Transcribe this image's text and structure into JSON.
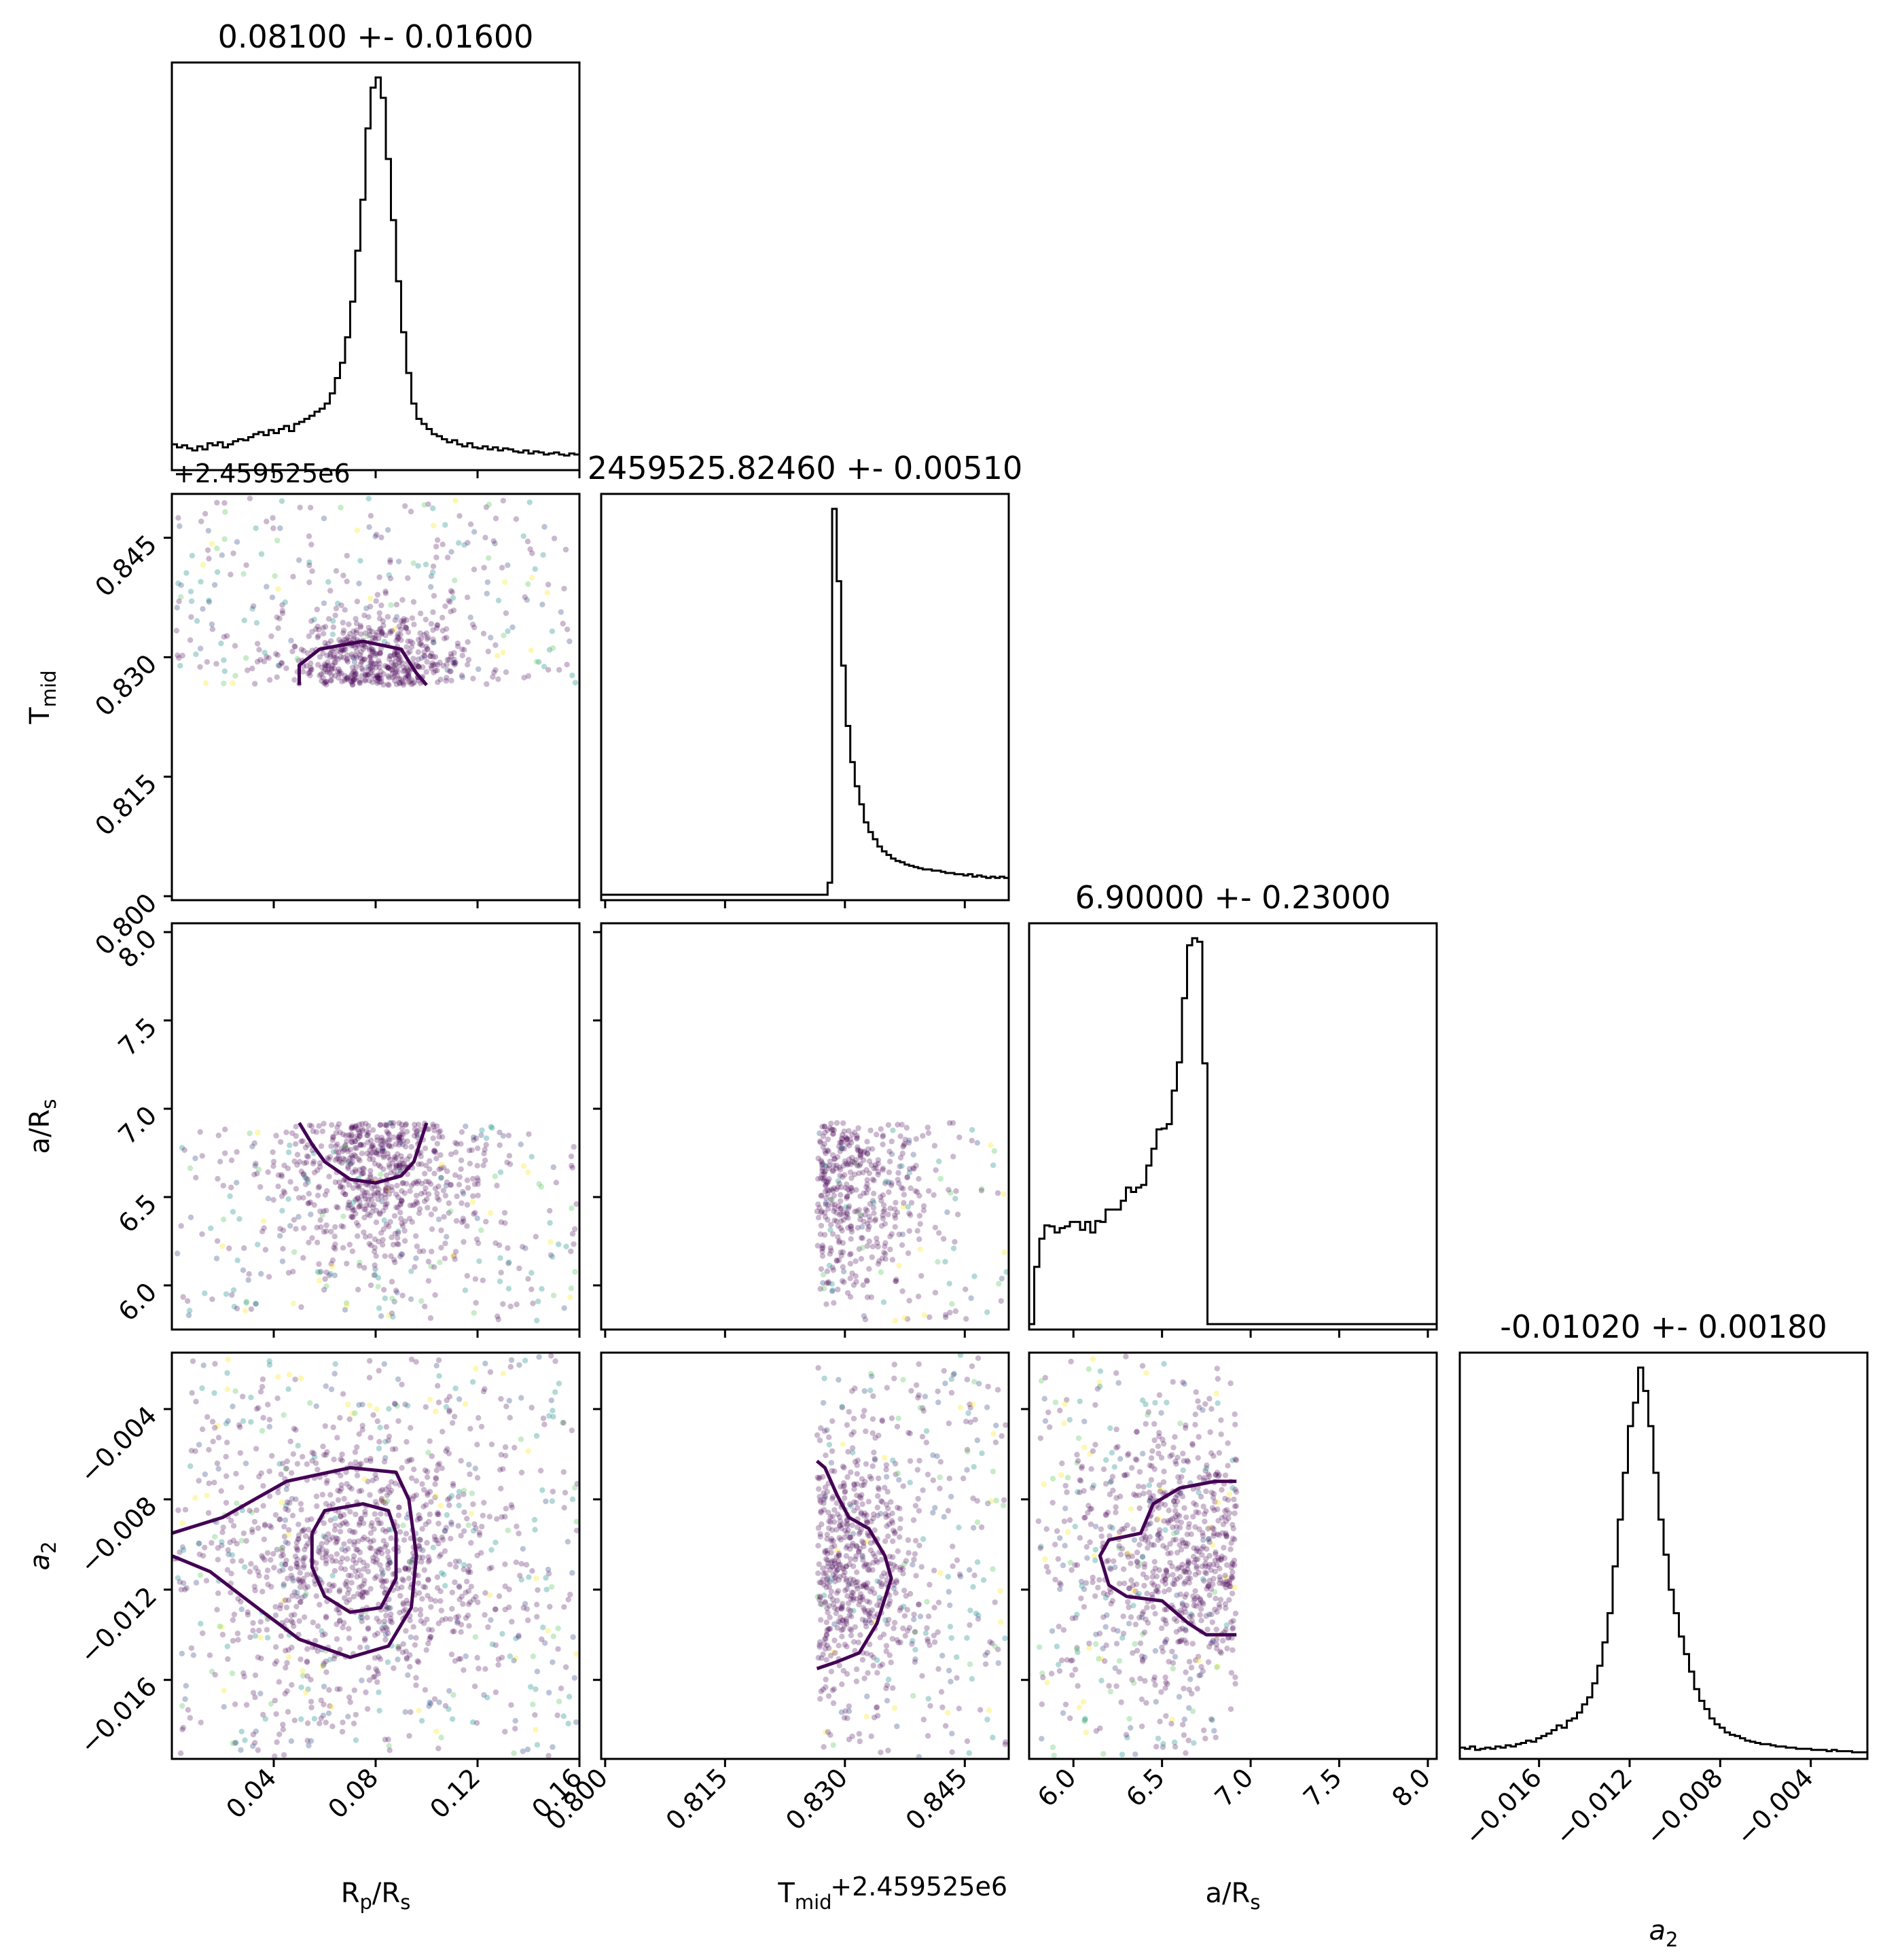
{
  "chart_data": {
    "type": "scatter",
    "chart_kind": "corner-plot",
    "colormap": "viridis",
    "parameters": [
      {
        "key": "rp",
        "label_main": "R",
        "label_sub": "p",
        "label_tail": "/R",
        "label_sub2": "s",
        "range": [
          0.0,
          0.16
        ],
        "ticks": [
          0.04,
          0.08,
          0.12,
          0.16
        ],
        "tick_labels": [
          "0.04",
          "0.08",
          "0.12",
          "0.16"
        ],
        "title": "0.08100 +- 0.01600",
        "offset_label": ""
      },
      {
        "key": "tmid",
        "label_main": "T",
        "label_sub": "mid",
        "label_tail": "",
        "label_sub2": "",
        "range": [
          0.7995,
          0.8505
        ],
        "ticks": [
          0.8,
          0.815,
          0.83,
          0.845
        ],
        "tick_labels": [
          "0.800",
          "0.815",
          "0.830",
          "0.845"
        ],
        "title": "2459525.82460 +- 0.00510",
        "offset_label": "+2.459525e6"
      },
      {
        "key": "ars",
        "label_main": "a/R",
        "label_sub": "s",
        "label_tail": "",
        "label_sub2": "",
        "range": [
          5.75,
          8.05
        ],
        "ticks": [
          6.0,
          6.5,
          7.0,
          7.5,
          8.0
        ],
        "tick_labels": [
          "6.0",
          "6.5",
          "7.0",
          "7.5",
          "8.0"
        ],
        "title": "6.90000 +- 0.23000",
        "offset_label": ""
      },
      {
        "key": "a2",
        "label_main": "a",
        "label_sub": "2",
        "label_tail": "",
        "label_sub2": "",
        "italic": true,
        "range": [
          -0.0195,
          -0.0015
        ],
        "ticks": [
          -0.016,
          -0.012,
          -0.008,
          -0.004
        ],
        "tick_labels": [
          "−0.016",
          "−0.012",
          "−0.008",
          "−0.004"
        ],
        "title": "-0.01020 +- 0.00180",
        "offset_label": ""
      }
    ],
    "histograms": [
      {
        "param": "rp",
        "bins": [
          0.0,
          0.16
        ],
        "counts": [
          20,
          17,
          19,
          16,
          14,
          18,
          15,
          21,
          19,
          22,
          17,
          20,
          23,
          25,
          24,
          27,
          30,
          32,
          29,
          34,
          31,
          35,
          38,
          33,
          40,
          42,
          45,
          48,
          52,
          55,
          60,
          70,
          85,
          100,
          125,
          160,
          210,
          260,
          330,
          370,
          380,
          360,
          300,
          240,
          180,
          130,
          90,
          60,
          45,
          40,
          35,
          30,
          28,
          25,
          22,
          24,
          20,
          18,
          21,
          17,
          16,
          18,
          15,
          17,
          14,
          16,
          15,
          13,
          12,
          14,
          11,
          13,
          12,
          10,
          11,
          12,
          10,
          9,
          11,
          10
        ]
      },
      {
        "param": "tmid",
        "bins": [
          0.7995,
          0.8505
        ],
        "counts": [
          0,
          0,
          0,
          0,
          0,
          0,
          0,
          0,
          0,
          0,
          0,
          0,
          0,
          0,
          0,
          0,
          0,
          0,
          0,
          0,
          0,
          0,
          0,
          0,
          0,
          0,
          0,
          0,
          0,
          0,
          0,
          0,
          0,
          0,
          0,
          0,
          0,
          0,
          0,
          0,
          0,
          0,
          0,
          0,
          0,
          0,
          0,
          0,
          0,
          0,
          10,
          320,
          260,
          190,
          140,
          110,
          90,
          75,
          60,
          52,
          46,
          40,
          36,
          33,
          30,
          28,
          27,
          25,
          24,
          23,
          22,
          21,
          21,
          20,
          20,
          19,
          18,
          18,
          17,
          17,
          16,
          17,
          15,
          16,
          15,
          14,
          15,
          14,
          15,
          14
        ]
      },
      {
        "param": "ars",
        "bins": [
          5.75,
          8.05
        ],
        "counts": [
          0,
          65,
          97,
          112,
          111,
          104,
          109,
          111,
          116,
          116,
          107,
          116,
          104,
          117,
          116,
          130,
          130,
          130,
          140,
          155,
          150,
          155,
          158,
          180,
          199,
          221,
          222,
          227,
          265,
          297,
          370,
          430,
          438,
          434,
          296,
          0,
          0,
          0,
          0,
          0,
          0,
          0,
          0,
          0,
          0,
          0,
          0,
          0,
          0,
          0,
          0,
          0,
          0,
          0,
          0,
          0,
          0,
          0,
          0,
          0,
          0,
          0,
          0,
          0,
          0,
          0,
          0,
          0,
          0,
          0,
          0,
          0,
          0,
          0,
          0,
          0,
          0,
          0,
          0,
          0
        ]
      },
      {
        "param": "a2",
        "bins": [
          -0.0195,
          -0.0015
        ],
        "counts": [
          5,
          4,
          6,
          3,
          4,
          5,
          4,
          6,
          5,
          7,
          6,
          8,
          9,
          11,
          10,
          13,
          15,
          17,
          20,
          24,
          22,
          28,
          30,
          35,
          42,
          48,
          60,
          75,
          95,
          120,
          160,
          200,
          240,
          280,
          300,
          330,
          310,
          280,
          240,
          200,
          170,
          140,
          120,
          100,
          85,
          70,
          55,
          45,
          38,
          30,
          25,
          22,
          18,
          16,
          15,
          13,
          11,
          10,
          9,
          8,
          8,
          7,
          6,
          6,
          5,
          5,
          4,
          4,
          4,
          3,
          3,
          3,
          2,
          3,
          2,
          2,
          2,
          1,
          1,
          1
        ]
      }
    ],
    "pairs": [
      {
        "x": "rp",
        "y": "tmid",
        "point_cloud": {
          "center": [
            0.08,
            0.8282
          ],
          "spread": [
            0.02,
            0.004
          ],
          "clip_y": [
            0.8265,
            0.85
          ]
        },
        "contours": [
          [
            [
              0.05,
              0.8265
            ],
            [
              0.05,
              0.829
            ],
            [
              0.058,
              0.831
            ],
            [
              0.075,
              0.832
            ],
            [
              0.09,
              0.831
            ],
            [
              0.096,
              0.828
            ],
            [
              0.1,
              0.8265
            ]
          ]
        ]
      },
      {
        "x": "rp",
        "y": "ars",
        "point_cloud": {
          "center": [
            0.08,
            6.75
          ],
          "spread": [
            0.02,
            0.3
          ],
          "clip_y": [
            5.8,
            6.92
          ]
        },
        "contours": [
          [
            [
              0.05,
              6.92
            ],
            [
              0.055,
              6.8
            ],
            [
              0.06,
              6.7
            ],
            [
              0.07,
              6.6
            ],
            [
              0.08,
              6.58
            ],
            [
              0.09,
              6.62
            ],
            [
              0.095,
              6.7
            ],
            [
              0.1,
              6.92
            ]
          ]
        ]
      },
      {
        "x": "rp",
        "y": "a2",
        "point_cloud": {
          "center": [
            0.075,
            -0.0105
          ],
          "spread": [
            0.03,
            0.003
          ]
        },
        "contours": [
          [
            [
              0.0,
              -0.0095
            ],
            [
              0.02,
              -0.0088
            ],
            [
              0.045,
              -0.0072
            ],
            [
              0.07,
              -0.0066
            ],
            [
              0.088,
              -0.0068
            ],
            [
              0.093,
              -0.008
            ],
            [
              0.096,
              -0.0105
            ],
            [
              0.094,
              -0.0128
            ],
            [
              0.085,
              -0.0145
            ],
            [
              0.07,
              -0.015
            ],
            [
              0.05,
              -0.0142
            ],
            [
              0.03,
              -0.0125
            ],
            [
              0.015,
              -0.0112
            ],
            [
              0.0,
              -0.0105
            ]
          ],
          [
            [
              0.055,
              -0.0095
            ],
            [
              0.06,
              -0.0085
            ],
            [
              0.075,
              -0.0082
            ],
            [
              0.085,
              -0.0085
            ],
            [
              0.088,
              -0.0095
            ],
            [
              0.088,
              -0.0115
            ],
            [
              0.082,
              -0.0128
            ],
            [
              0.07,
              -0.013
            ],
            [
              0.06,
              -0.0123
            ],
            [
              0.055,
              -0.011
            ],
            [
              0.055,
              -0.0095
            ]
          ]
        ]
      },
      {
        "x": "tmid",
        "y": "ars",
        "point_cloud": {
          "center": [
            0.8285,
            6.7
          ],
          "spread": [
            0.006,
            0.35
          ],
          "clip_x": [
            0.8265,
            0.8505
          ],
          "clip_y": [
            5.8,
            6.92
          ]
        },
        "contours": []
      },
      {
        "x": "tmid",
        "y": "a2",
        "point_cloud": {
          "center": [
            0.828,
            -0.0105
          ],
          "spread": [
            0.006,
            0.003
          ],
          "clip_x": [
            0.8265,
            0.8505
          ]
        },
        "contours": [
          [
            [
              0.8265,
              -0.0063
            ],
            [
              0.8275,
              -0.0066
            ],
            [
              0.829,
              -0.0078
            ],
            [
              0.8305,
              -0.0088
            ],
            [
              0.833,
              -0.0093
            ],
            [
              0.835,
              -0.0105
            ],
            [
              0.8358,
              -0.0115
            ],
            [
              0.834,
              -0.0135
            ],
            [
              0.8318,
              -0.0148
            ],
            [
              0.829,
              -0.0152
            ],
            [
              0.8265,
              -0.0155
            ]
          ]
        ]
      },
      {
        "x": "ars",
        "y": "a2",
        "point_cloud": {
          "center": [
            6.7,
            -0.0105
          ],
          "spread": [
            0.35,
            0.003
          ],
          "clip_x": [
            5.8,
            6.92
          ]
        },
        "contours": [
          [
            [
              6.92,
              -0.0072
            ],
            [
              6.8,
              -0.0072
            ],
            [
              6.6,
              -0.0075
            ],
            [
              6.45,
              -0.0082
            ],
            [
              6.38,
              -0.0095
            ],
            [
              6.2,
              -0.0098
            ],
            [
              6.15,
              -0.0105
            ],
            [
              6.2,
              -0.0118
            ],
            [
              6.3,
              -0.0123
            ],
            [
              6.5,
              -0.0125
            ],
            [
              6.65,
              -0.0135
            ],
            [
              6.75,
              -0.014
            ],
            [
              6.92,
              -0.014
            ]
          ]
        ]
      }
    ]
  }
}
